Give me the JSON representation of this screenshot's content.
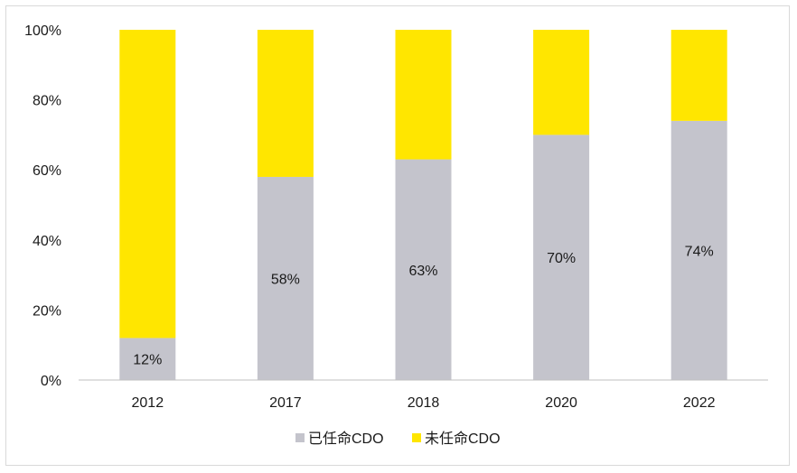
{
  "chart_data": {
    "type": "bar",
    "stacked": true,
    "categories": [
      "2012",
      "2017",
      "2018",
      "2020",
      "2022"
    ],
    "series": [
      {
        "name": "已任命CDO",
        "values": [
          12,
          58,
          63,
          70,
          74
        ],
        "color": "#c4c4cc",
        "labels": [
          "12%",
          "58%",
          "63%",
          "70%",
          "74%"
        ]
      },
      {
        "name": "未任命CDO",
        "values": [
          88,
          42,
          37,
          30,
          26
        ],
        "color": "#ffe600"
      }
    ],
    "yticks": [
      "0%",
      "20%",
      "40%",
      "60%",
      "80%",
      "100%"
    ],
    "ylim": [
      0,
      100
    ],
    "grid": false,
    "legend_position": "bottom"
  }
}
